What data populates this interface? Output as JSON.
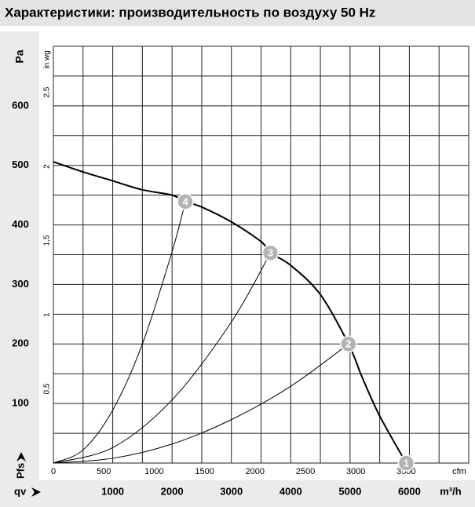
{
  "chart_data": {
    "type": "line",
    "title": "Характеристики: производительность по воздуху 50 Hz",
    "y_label": "Pa",
    "y2_label": "in wg",
    "x_label": "m³/h",
    "x2_label": "cfm",
    "x_name": "qv",
    "y_name": "Pfs",
    "xlim": [
      0,
      7000
    ],
    "ylim": [
      0,
      700
    ],
    "x2lim": [
      0,
      4120
    ],
    "y2lim": [
      0,
      2.81
    ],
    "xticks": [
      1000,
      2000,
      3000,
      4000,
      5000,
      6000
    ],
    "x2ticks": [
      0,
      500,
      1000,
      1500,
      2000,
      2500,
      3000,
      3500
    ],
    "yticks": [
      100,
      200,
      300,
      400,
      500,
      600
    ],
    "y2ticks": [
      {
        "value": 0.5,
        "label": "0,5"
      },
      1,
      {
        "value": 1.5,
        "label": "1,5"
      },
      2,
      {
        "value": 2.5,
        "label": "2,5"
      }
    ],
    "xgrid": [
      500,
      1000,
      1500,
      2000,
      2500,
      3000,
      3500,
      4000,
      4500,
      5000,
      5500,
      6000,
      6500
    ],
    "ygrid": [
      50,
      100,
      150,
      200,
      250,
      300,
      350,
      400,
      450,
      500,
      550,
      600,
      650
    ],
    "series": [
      {
        "color": "#000",
        "width": 2,
        "x": [
          0,
          500,
          1000,
          1500,
          2000,
          2224,
          2500,
          3000,
          3500,
          3658,
          4000,
          4500,
          4974,
          5200,
          5500,
          5947
        ],
        "values": [
          506,
          489,
          474,
          459,
          450,
          439,
          430,
          405,
          372,
          353,
          332,
          283,
          200,
          145,
          79,
          0
        ]
      },
      {
        "color": "#000",
        "width": 1,
        "x": [
          0,
          500,
          1000,
          1500,
          2000,
          2224
        ],
        "values": [
          0,
          22,
          89,
          200,
          355,
          439
        ]
      },
      {
        "color": "#000",
        "width": 1,
        "x": [
          0,
          1000,
          2000,
          3000,
          3658
        ],
        "values": [
          0,
          26,
          106,
          237,
          353
        ]
      },
      {
        "color": "#000",
        "width": 1,
        "x": [
          0,
          1000,
          2000,
          3000,
          4000,
          4974
        ],
        "values": [
          0,
          8,
          32,
          73,
          129,
          200
        ]
      }
    ],
    "points": [
      {
        "label": "1",
        "x": 5947,
        "y": 0
      },
      {
        "label": "2",
        "x": 4974,
        "y": 200
      },
      {
        "label": "3",
        "x": 3658,
        "y": 353
      },
      {
        "label": "4",
        "x": 2224,
        "y": 439
      }
    ]
  }
}
